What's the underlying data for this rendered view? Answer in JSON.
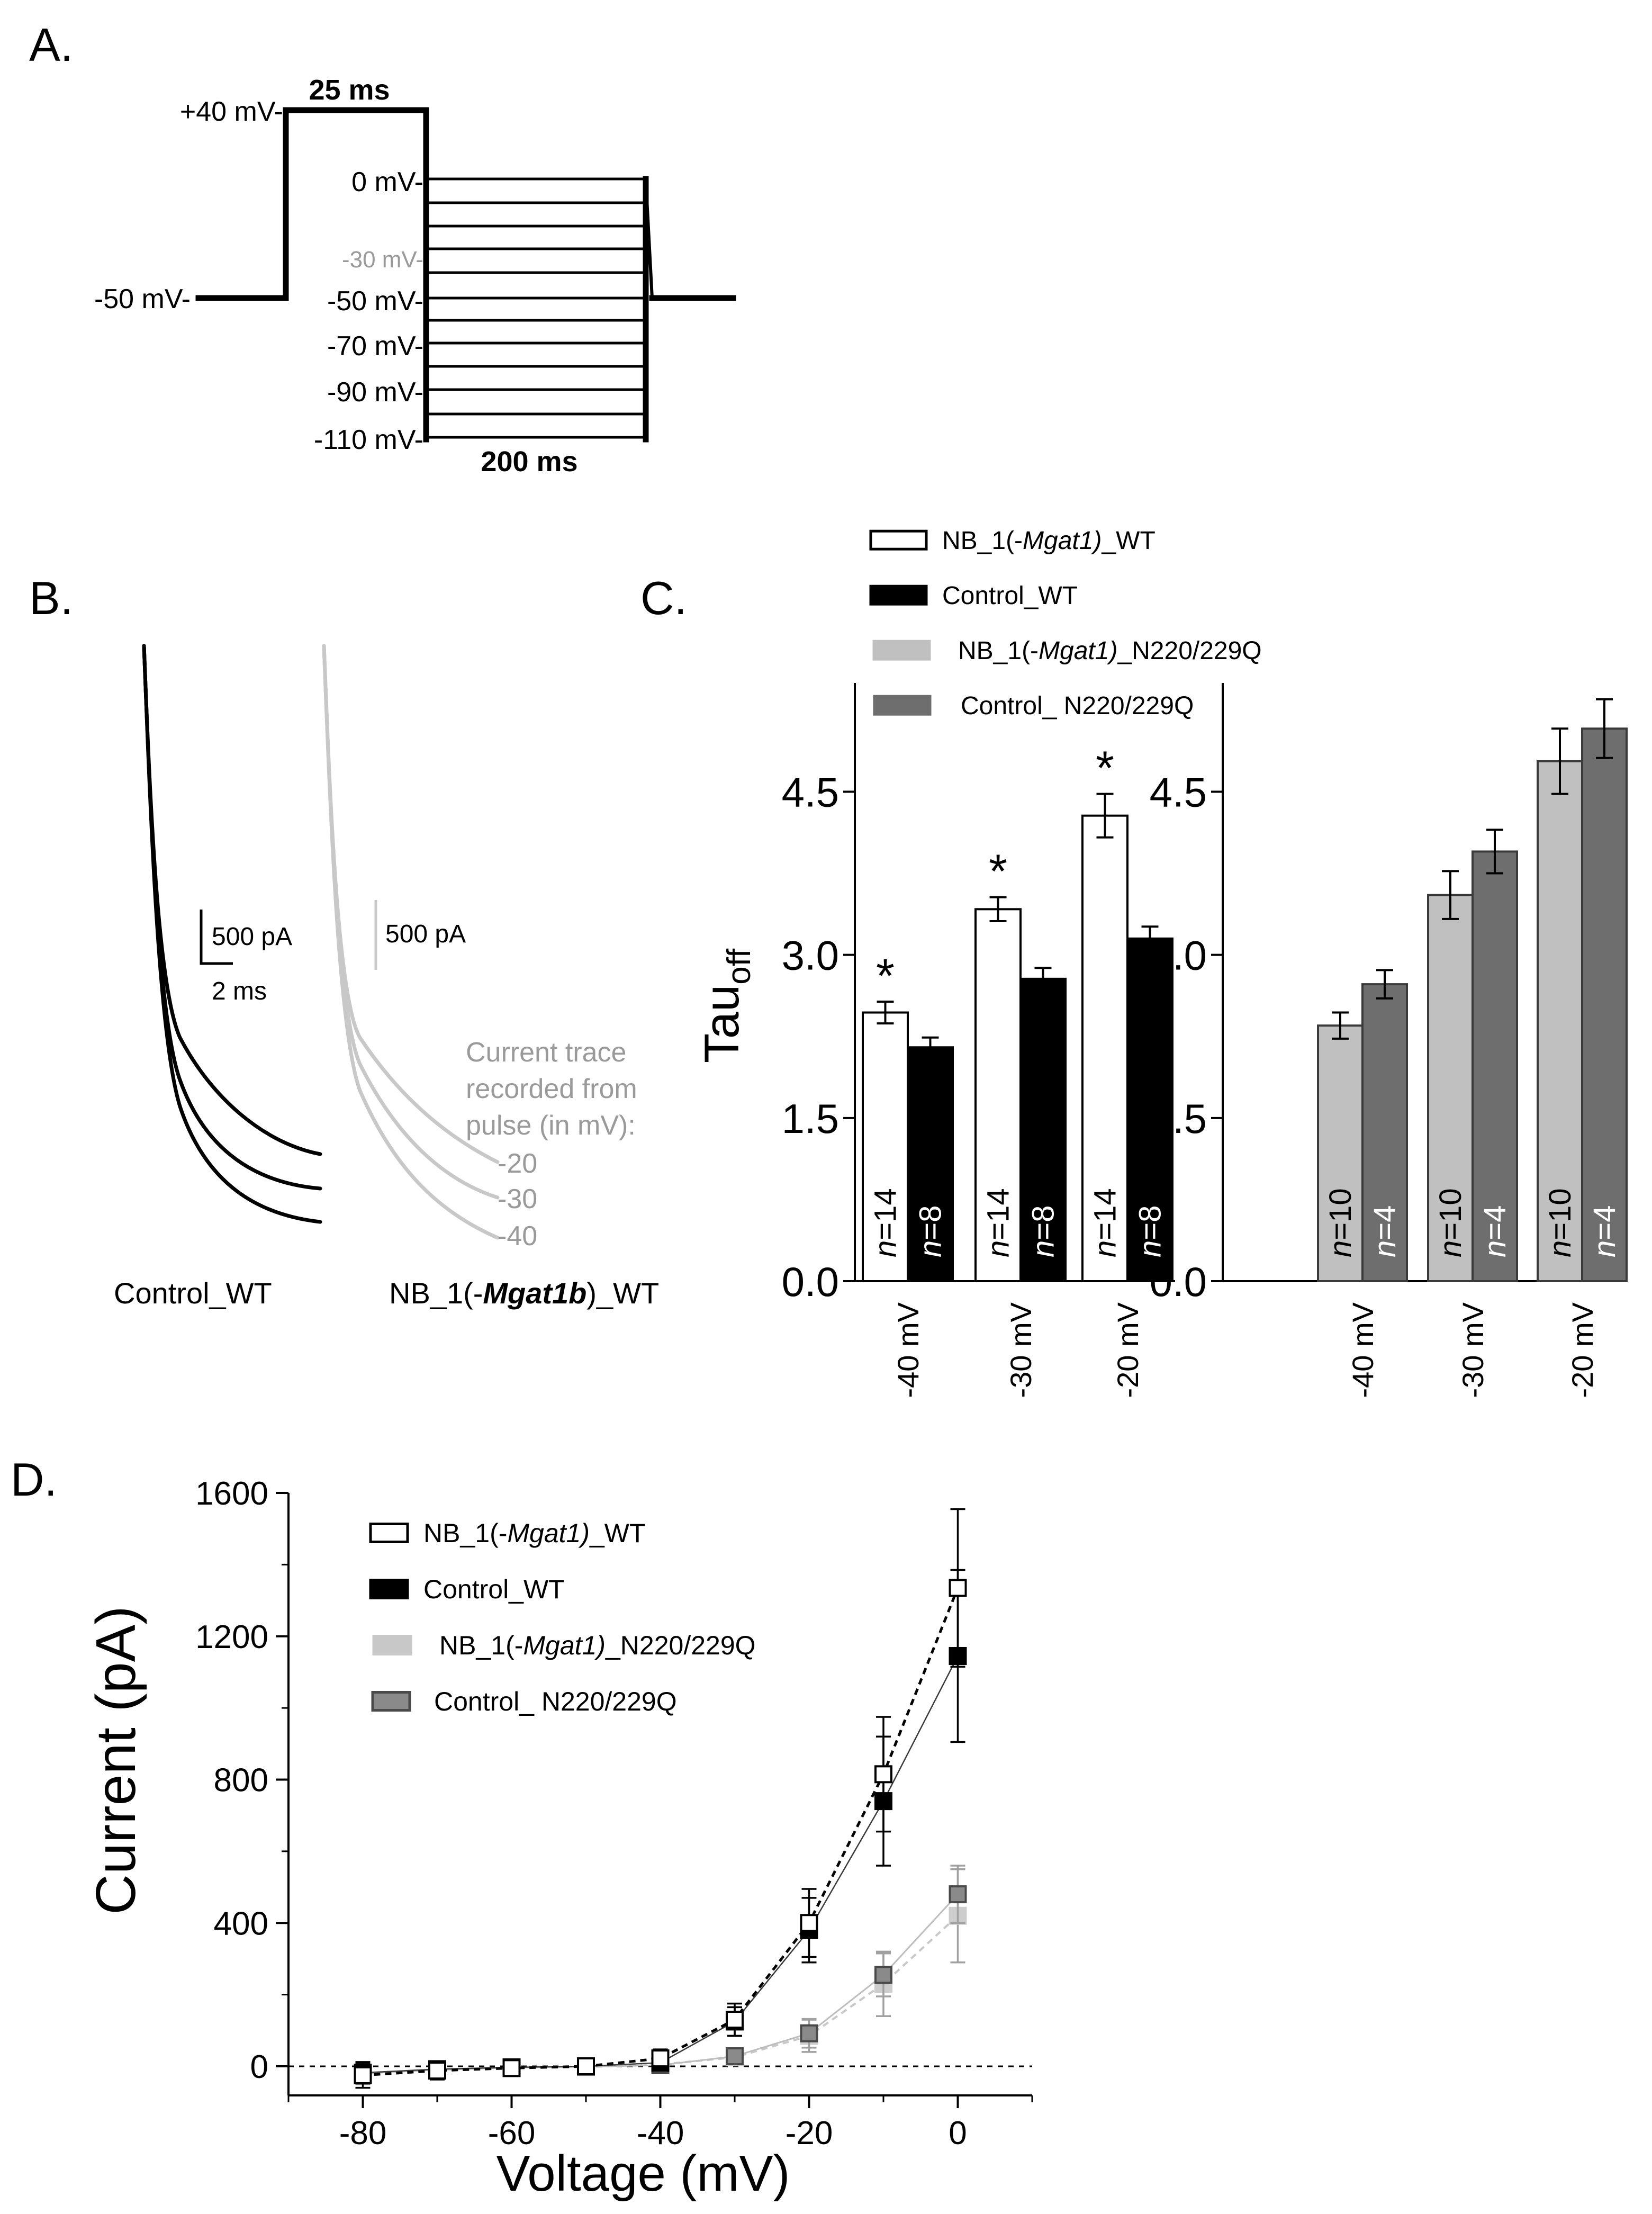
{
  "panel_letters": {
    "a": "A.",
    "b": "B.",
    "c": "C.",
    "d": "D."
  },
  "protocol": {
    "hold_label": "-50 mV-",
    "prepulse_label": "+40 mV-",
    "prepulse_duration": "25 ms",
    "test_duration": "200 ms",
    "step_labels": [
      "0 mV-",
      "-30 mV-",
      "-50 mV-",
      "-70 mV-",
      "-90 mV-",
      "-110 mV-"
    ],
    "highlight_step_color": "#9a9a9a"
  },
  "traces": {
    "control_label": "Control_WT",
    "nb_label_prefix": "NB_1(-",
    "nb_label_italic": "Mgat1b",
    "nb_label_suffix": ")_WT",
    "scalebar_control_current": "500 pA",
    "scalebar_control_time": "2 ms",
    "scalebar_nb_current": "500 pA",
    "note_lines": [
      "Current trace",
      "recorded from",
      "pulse (in mV):"
    ],
    "pulse_labels": [
      "-20",
      "-30",
      "-40"
    ],
    "control_color": "#000000",
    "nb_color": "#c8c8c8",
    "note_color": "#9a9a9a"
  },
  "legend_c": [
    {
      "prefix": "NB_1(-",
      "italic": "Mgat1)",
      "suffix": "_WT",
      "fill": "#ffffff",
      "stroke": "#000000"
    },
    {
      "prefix": "Control_WT",
      "italic": "",
      "suffix": "",
      "fill": "#000000",
      "stroke": "#000000"
    },
    {
      "prefix": "NB_1(-",
      "italic": "Mgat1)",
      "suffix": "_N220/229Q",
      "fill": "#c0c0c0",
      "stroke": "#c0c0c0"
    },
    {
      "prefix": "Control_ N220/229Q",
      "italic": "",
      "suffix": "",
      "fill": "#6e6e6e",
      "stroke": "#6e6e6e"
    }
  ],
  "legend_d": [
    {
      "prefix": "NB_1(-",
      "italic": "Mgat1)",
      "suffix": "_WT",
      "fill": "#ffffff",
      "stroke": "#000000"
    },
    {
      "prefix": "Control_WT",
      "italic": "",
      "suffix": "",
      "fill": "#000000",
      "stroke": "#000000"
    },
    {
      "prefix": "NB_1(-",
      "italic": "Mgat1)",
      "suffix": "_N220/229Q",
      "fill": "#c8c8c8",
      "stroke": "#c8c8c8"
    },
    {
      "prefix": "Control_ N220/229Q",
      "italic": "",
      "suffix": "",
      "fill": "#8a8a8a",
      "stroke": "#4a4a4a"
    }
  ],
  "chart_data": [
    {
      "type": "bar",
      "panel": "C-left",
      "ylabel": "Tau",
      "ylabel_sub": "off",
      "ylim": [
        0,
        5.5
      ],
      "yticks": [
        0.0,
        1.5,
        3.0,
        4.5
      ],
      "ytick_labels": [
        "0.0",
        "1.5",
        "3.0",
        "4.5"
      ],
      "categories": [
        "-40 mV",
        "-30 mV",
        "-20 mV"
      ],
      "series": [
        {
          "name": "NB_1(-Mgat1)_WT",
          "values": [
            2.47,
            3.42,
            4.28
          ],
          "errors": [
            0.1,
            0.11,
            0.2
          ],
          "n_labels": [
            "n=14",
            "n=14",
            "n=14"
          ],
          "fill": "#ffffff",
          "stroke": "#000000",
          "n_color": "#000000"
        },
        {
          "name": "Control_WT",
          "values": [
            2.15,
            2.78,
            3.15
          ],
          "errors": [
            0.09,
            0.1,
            0.11
          ],
          "n_labels": [
            "n=8",
            "n=8",
            "n=8"
          ],
          "fill": "#000000",
          "stroke": "#000000",
          "n_color": "#ffffff"
        }
      ],
      "significance": [
        "*",
        "*",
        "*"
      ]
    },
    {
      "type": "bar",
      "panel": "C-right",
      "ylim": [
        0,
        5.5
      ],
      "yticks": [
        0.0,
        1.5,
        3.0,
        4.5
      ],
      "ytick_labels": [
        "0.0",
        "1.5",
        "3.0",
        "4.5"
      ],
      "categories": [
        "-40 mV",
        "-30 mV",
        "-20 mV"
      ],
      "series": [
        {
          "name": "NB_1(-Mgat1)_N220/229Q",
          "values": [
            2.35,
            3.55,
            4.78
          ],
          "errors": [
            0.12,
            0.22,
            0.3
          ],
          "n_labels": [
            "n=10",
            "n=10",
            "n=10"
          ],
          "fill": "#c0c0c0",
          "stroke": "#3a3a3a",
          "n_color": "#000000"
        },
        {
          "name": "Control_ N220/229Q",
          "values": [
            2.73,
            3.95,
            5.08
          ],
          "errors": [
            0.13,
            0.2,
            0.27
          ],
          "n_labels": [
            "n=4",
            "n=4",
            "n=4"
          ],
          "fill": "#6e6e6e",
          "stroke": "#3a3a3a",
          "n_color": "#ffffff"
        }
      ]
    },
    {
      "type": "line",
      "panel": "D",
      "xlabel": "Voltage (mV)",
      "ylabel": "Current (pA)",
      "xlim": [
        -90,
        10
      ],
      "ylim": [
        -50,
        1600
      ],
      "xticks": [
        -80,
        -60,
        -40,
        -20,
        0
      ],
      "xtick_labels": [
        "-80",
        "-60",
        "-40",
        "-20",
        "0"
      ],
      "yticks": [
        0,
        400,
        800,
        1200,
        1600
      ],
      "ytick_labels": [
        "0",
        "400",
        "800",
        "1200",
        "1600"
      ],
      "x": [
        -80,
        -70,
        -60,
        -50,
        -40,
        -30,
        -20,
        -10,
        0
      ],
      "series": [
        {
          "name": "NB_1(-Mgat1)_WT",
          "values": [
            -25,
            -12,
            -5,
            0,
            22,
            130,
            400,
            815,
            1335
          ],
          "errors": [
            35,
            25,
            20,
            15,
            25,
            45,
            95,
            160,
            220
          ],
          "line": "#000000",
          "dash": "12,9",
          "width": 5,
          "fill": "#ffffff",
          "stroke": "#000000"
        },
        {
          "name": "Control_WT",
          "values": [
            -18,
            -8,
            -3,
            0,
            10,
            125,
            380,
            740,
            1145
          ],
          "errors": [
            30,
            20,
            15,
            12,
            20,
            40,
            90,
            180,
            240
          ],
          "line": "#3a3a3a",
          "dash": "",
          "width": 2.5,
          "fill": "#000000",
          "stroke": "#000000"
        },
        {
          "name": "NB_1(-Mgat1)_N220/229Q",
          "values": [
            -22,
            -12,
            -5,
            -2,
            5,
            25,
            85,
            230,
            420
          ],
          "errors": [
            28,
            20,
            15,
            10,
            12,
            15,
            45,
            90,
            130
          ],
          "line": "#c8c8c8",
          "dash": "12,9",
          "width": 4,
          "fill": "#cdcdcd",
          "stroke": "#cdcdcd"
        },
        {
          "name": "Control_ N220/229Q",
          "values": [
            -20,
            -10,
            -4,
            -1,
            3,
            28,
            92,
            255,
            480
          ],
          "errors": [
            25,
            18,
            12,
            10,
            10,
            15,
            40,
            60,
            80
          ],
          "line": "#bdbdbd",
          "dash": "",
          "width": 3,
          "fill": "#8a8a8a",
          "stroke": "#4a4a4a"
        }
      ],
      "zero_line": true
    }
  ]
}
